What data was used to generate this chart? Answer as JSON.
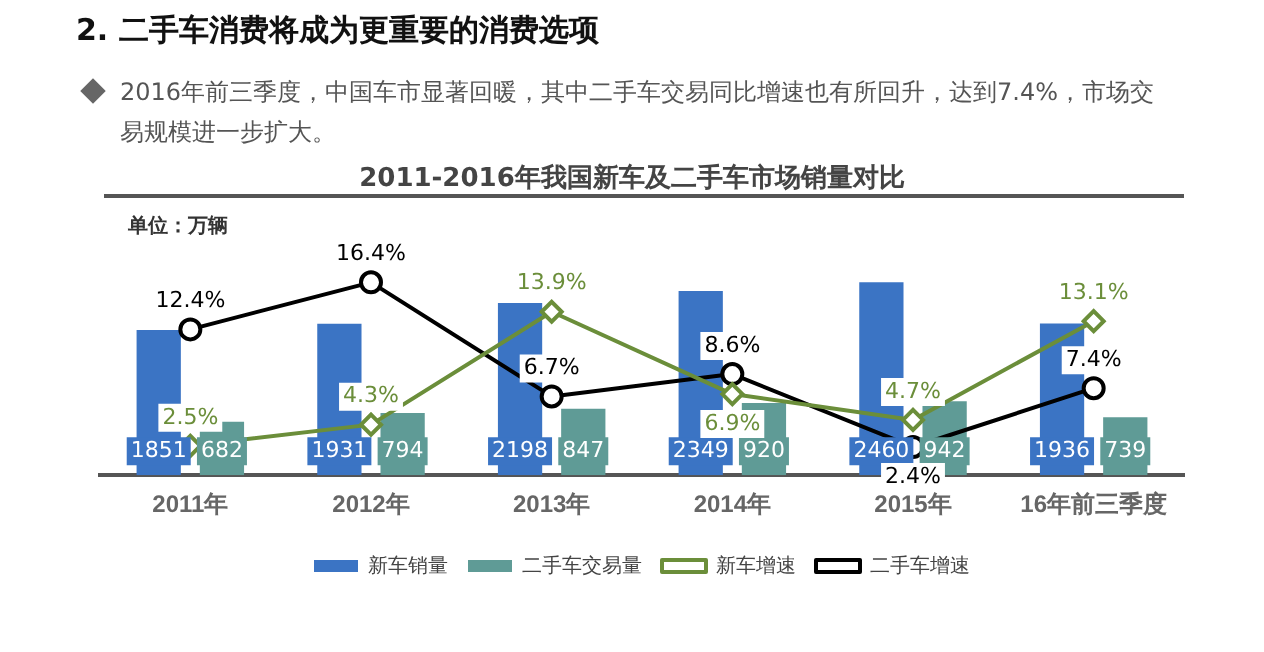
{
  "chart_data": {
    "type": "bar",
    "title": "2011-2016年我国新车及二手车市场销量对比",
    "annotations": [
      "2.  二手车消费将成为更重要的消费选项",
      "2016年前三季度，中国车市显著回暖，其中二手车交易同比增速也有所回升，达到7.4%，市场交易规模进一步扩大。",
      "单位：万辆"
    ],
    "categories": [
      "2011年",
      "2012年",
      "2013年",
      "2014年",
      "2015年",
      "16年前三季度"
    ],
    "series": [
      {
        "name": "新车销量",
        "color": "#3b74c4",
        "values": [
          1851,
          1931,
          2198,
          2349,
          2460,
          1936
        ],
        "value_labels": [
          "1851",
          "1931",
          "2198",
          "2349",
          "2460",
          "1936"
        ]
      },
      {
        "name": "二手车交易量",
        "color": "#5f9b96",
        "values": [
          682,
          794,
          847,
          920,
          942,
          739
        ],
        "value_labels": [
          "682",
          "794",
          "847",
          "920",
          "942",
          "739"
        ]
      },
      {
        "name": "新车增速",
        "type": "line",
        "axis": "y2",
        "color": "#6b8e3a",
        "marker": "diamond",
        "values": [
          2.5,
          4.3,
          13.9,
          6.9,
          4.7,
          13.1
        ],
        "value_labels": [
          "2.5%",
          "4.3%",
          "13.9%",
          "6.9%",
          "4.7%",
          "13.1%"
        ]
      },
      {
        "name": "二手车增速",
        "type": "line",
        "axis": "y2",
        "color": "#000000",
        "marker": "circle",
        "values": [
          12.4,
          16.4,
          6.7,
          8.6,
          2.4,
          7.4
        ],
        "value_labels": [
          "12.4%",
          "16.4%",
          "6.7%",
          "8.6%",
          "2.4%",
          "7.4%"
        ]
      }
    ],
    "grid": false,
    "legend": "bottom"
  }
}
